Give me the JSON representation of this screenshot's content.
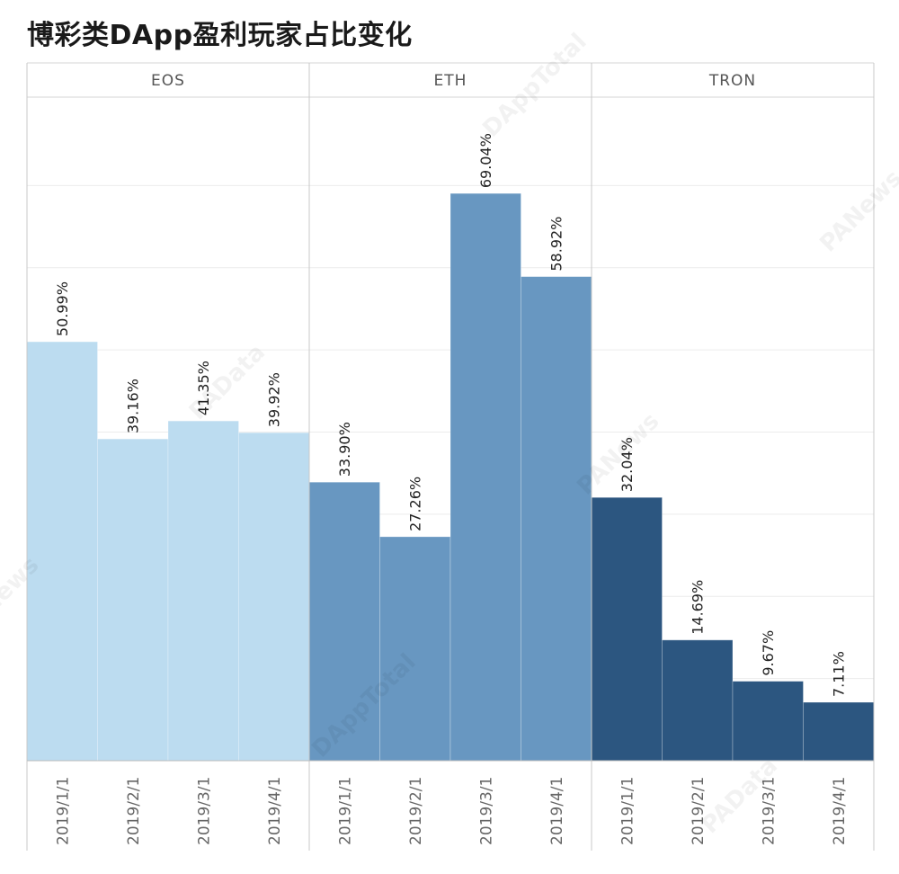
{
  "title": "博彩类DApp盈利玩家占比变化",
  "watermarks": [
    "DAppTotal",
    "PAData",
    "PANews",
    "DAppTotal",
    "PANews",
    "PAData",
    "PANews"
  ],
  "chart_data": {
    "type": "bar",
    "title": "博彩类DApp盈利玩家占比变化",
    "panels": [
      {
        "name": "EOS",
        "color": "#bcdcf0",
        "categories": [
          "2019/1/1",
          "2019/2/1",
          "2019/3/1",
          "2019/4/1"
        ],
        "values": [
          50.99,
          39.16,
          41.35,
          39.92
        ],
        "labels": [
          "50.99%",
          "39.16%",
          "41.35%",
          "39.92%"
        ]
      },
      {
        "name": "ETH",
        "color": "#6897c1",
        "categories": [
          "2019/1/1",
          "2019/2/1",
          "2019/3/1",
          "2019/4/1"
        ],
        "values": [
          33.9,
          27.26,
          69.04,
          58.92
        ],
        "labels": [
          "33.90%",
          "27.26%",
          "69.04%",
          "58.92%"
        ]
      },
      {
        "name": "TRON",
        "color": "#2c5680",
        "categories": [
          "2019/1/1",
          "2019/2/1",
          "2019/3/1",
          "2019/4/1"
        ],
        "values": [
          32.04,
          14.69,
          9.67,
          7.11
        ],
        "labels": [
          "32.04%",
          "14.69%",
          "9.67%",
          "7.11%"
        ]
      }
    ],
    "ylim": [
      0,
      80
    ],
    "grid": true,
    "legend": "none"
  }
}
